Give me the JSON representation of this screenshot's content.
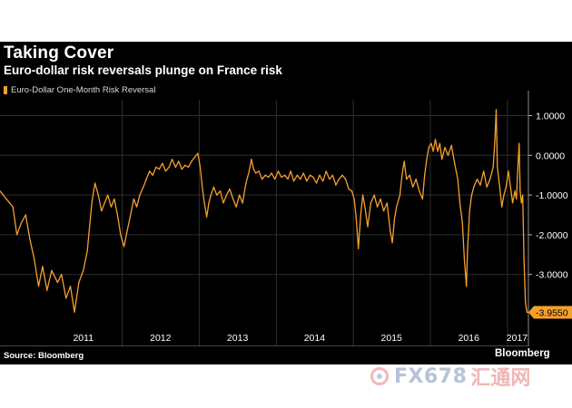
{
  "title": "Taking Cover",
  "subtitle": "Euro-dollar risk reversals plunge on France risk",
  "source": "Source: Bloomberg",
  "logo": "Bloomberg",
  "watermark": {
    "brand": "FX678",
    "cn": "汇通网"
  },
  "colors": {
    "line": "#f6a02c",
    "background": "#000000",
    "grid": "#2e2e2e",
    "axis_text": "#ffffff",
    "last_box": "#f6a02c"
  },
  "chart_data": {
    "type": "line",
    "legend": [
      "Euro-Dollar One-Month Risk Reversal"
    ],
    "legend_position": "top-left",
    "grid": true,
    "ylim": [
      -4.4,
      1.4
    ],
    "y_ticks": [
      1.0,
      0.0,
      -1.0,
      -2.0,
      -3.0
    ],
    "y_tick_labels": [
      "1.0000",
      "0.0000",
      "-1.0000",
      "-2.0000",
      "-3.0000"
    ],
    "x_range": [
      "2010-06-01",
      "2017-04-10"
    ],
    "x_tick_labels": [
      "2011",
      "2012",
      "2013",
      "2014",
      "2015",
      "2016",
      "2017"
    ],
    "x_label_dates": [
      "2011-07-01",
      "2012-07-01",
      "2013-07-01",
      "2014-07-01",
      "2015-07-01",
      "2016-07-01",
      "2017-02-15"
    ],
    "x_separator_dates": [
      "2012-01-01",
      "2013-01-01",
      "2014-01-01",
      "2015-01-01",
      "2016-01-01",
      "2017-01-01"
    ],
    "last_value_label": "-3.9550",
    "series": [
      {
        "name": "Euro-Dollar One-Month Risk Reversal",
        "points": [
          [
            "2010-06-01",
            -0.9
          ],
          [
            "2010-07-01",
            -1.1
          ],
          [
            "2010-08-01",
            -1.3
          ],
          [
            "2010-08-20",
            -2.0
          ],
          [
            "2010-09-10",
            -1.7
          ],
          [
            "2010-10-01",
            -1.5
          ],
          [
            "2010-10-20",
            -2.1
          ],
          [
            "2010-11-10",
            -2.6
          ],
          [
            "2010-12-01",
            -3.3
          ],
          [
            "2010-12-20",
            -2.8
          ],
          [
            "2011-01-10",
            -3.4
          ],
          [
            "2011-02-01",
            -2.9
          ],
          [
            "2011-03-01",
            -3.2
          ],
          [
            "2011-03-20",
            -3.0
          ],
          [
            "2011-04-10",
            -3.6
          ],
          [
            "2011-05-01",
            -3.3
          ],
          [
            "2011-05-20",
            -3.95
          ],
          [
            "2011-06-10",
            -3.2
          ],
          [
            "2011-07-01",
            -2.9
          ],
          [
            "2011-07-20",
            -2.4
          ],
          [
            "2011-08-10",
            -1.2
          ],
          [
            "2011-08-25",
            -0.7
          ],
          [
            "2011-09-10",
            -1.0
          ],
          [
            "2011-09-25",
            -1.4
          ],
          [
            "2011-10-10",
            -1.2
          ],
          [
            "2011-10-25",
            -1.0
          ],
          [
            "2011-11-10",
            -1.3
          ],
          [
            "2011-11-25",
            -1.1
          ],
          [
            "2011-12-10",
            -1.5
          ],
          [
            "2011-12-25",
            -2.0
          ],
          [
            "2012-01-10",
            -2.3
          ],
          [
            "2012-01-25",
            -1.9
          ],
          [
            "2012-02-10",
            -1.5
          ],
          [
            "2012-02-25",
            -1.1
          ],
          [
            "2012-03-10",
            -1.3
          ],
          [
            "2012-03-25",
            -1.0
          ],
          [
            "2012-04-10",
            -0.8
          ],
          [
            "2012-04-25",
            -0.6
          ],
          [
            "2012-05-10",
            -0.4
          ],
          [
            "2012-05-25",
            -0.5
          ],
          [
            "2012-06-10",
            -0.3
          ],
          [
            "2012-06-25",
            -0.35
          ],
          [
            "2012-07-10",
            -0.2
          ],
          [
            "2012-07-25",
            -0.4
          ],
          [
            "2012-08-10",
            -0.3
          ],
          [
            "2012-08-25",
            -0.1
          ],
          [
            "2012-09-10",
            -0.3
          ],
          [
            "2012-09-25",
            -0.15
          ],
          [
            "2012-10-10",
            -0.35
          ],
          [
            "2012-10-25",
            -0.25
          ],
          [
            "2012-11-10",
            -0.3
          ],
          [
            "2012-11-25",
            -0.15
          ],
          [
            "2012-12-10",
            -0.05
          ],
          [
            "2012-12-25",
            0.05
          ],
          [
            "2013-01-05",
            -0.3
          ],
          [
            "2013-01-15",
            -0.8
          ],
          [
            "2013-01-25",
            -1.2
          ],
          [
            "2013-02-05",
            -1.55
          ],
          [
            "2013-02-15",
            -1.2
          ],
          [
            "2013-02-25",
            -1.0
          ],
          [
            "2013-03-10",
            -0.8
          ],
          [
            "2013-03-25",
            -1.0
          ],
          [
            "2013-04-10",
            -0.9
          ],
          [
            "2013-04-25",
            -1.2
          ],
          [
            "2013-05-10",
            -1.0
          ],
          [
            "2013-05-25",
            -0.85
          ],
          [
            "2013-06-10",
            -1.1
          ],
          [
            "2013-06-25",
            -1.3
          ],
          [
            "2013-07-10",
            -1.0
          ],
          [
            "2013-07-25",
            -1.2
          ],
          [
            "2013-08-10",
            -0.7
          ],
          [
            "2013-08-25",
            -0.4
          ],
          [
            "2013-09-05",
            -0.1
          ],
          [
            "2013-09-15",
            -0.35
          ],
          [
            "2013-09-25",
            -0.45
          ],
          [
            "2013-10-10",
            -0.4
          ],
          [
            "2013-10-25",
            -0.6
          ],
          [
            "2013-11-10",
            -0.5
          ],
          [
            "2013-11-25",
            -0.55
          ],
          [
            "2013-12-10",
            -0.45
          ],
          [
            "2013-12-25",
            -0.6
          ],
          [
            "2014-01-10",
            -0.4
          ],
          [
            "2014-01-25",
            -0.55
          ],
          [
            "2014-02-10",
            -0.5
          ],
          [
            "2014-02-25",
            -0.6
          ],
          [
            "2014-03-10",
            -0.4
          ],
          [
            "2014-03-25",
            -0.65
          ],
          [
            "2014-04-10",
            -0.5
          ],
          [
            "2014-04-25",
            -0.6
          ],
          [
            "2014-05-10",
            -0.45
          ],
          [
            "2014-05-25",
            -0.65
          ],
          [
            "2014-06-10",
            -0.5
          ],
          [
            "2014-06-25",
            -0.55
          ],
          [
            "2014-07-10",
            -0.7
          ],
          [
            "2014-07-25",
            -0.5
          ],
          [
            "2014-08-10",
            -0.65
          ],
          [
            "2014-08-25",
            -0.4
          ],
          [
            "2014-09-10",
            -0.6
          ],
          [
            "2014-09-25",
            -0.5
          ],
          [
            "2014-10-10",
            -0.75
          ],
          [
            "2014-10-25",
            -0.6
          ],
          [
            "2014-11-10",
            -0.5
          ],
          [
            "2014-11-25",
            -0.6
          ],
          [
            "2014-12-10",
            -0.85
          ],
          [
            "2014-12-25",
            -0.9
          ],
          [
            "2015-01-05",
            -1.1
          ],
          [
            "2015-01-15",
            -1.6
          ],
          [
            "2015-01-25",
            -2.35
          ],
          [
            "2015-02-05",
            -1.5
          ],
          [
            "2015-02-15",
            -1.0
          ],
          [
            "2015-02-25",
            -1.3
          ],
          [
            "2015-03-10",
            -1.8
          ],
          [
            "2015-03-25",
            -1.2
          ],
          [
            "2015-04-10",
            -1.0
          ],
          [
            "2015-04-25",
            -1.3
          ],
          [
            "2015-05-10",
            -1.1
          ],
          [
            "2015-05-25",
            -1.4
          ],
          [
            "2015-06-10",
            -1.2
          ],
          [
            "2015-06-25",
            -1.9
          ],
          [
            "2015-07-05",
            -2.2
          ],
          [
            "2015-07-15",
            -1.6
          ],
          [
            "2015-07-25",
            -1.3
          ],
          [
            "2015-08-10",
            -1.0
          ],
          [
            "2015-08-20",
            -0.5
          ],
          [
            "2015-08-30",
            -0.15
          ],
          [
            "2015-09-10",
            -0.6
          ],
          [
            "2015-09-25",
            -0.5
          ],
          [
            "2015-10-10",
            -0.8
          ],
          [
            "2015-10-25",
            -0.6
          ],
          [
            "2015-11-10",
            -0.9
          ],
          [
            "2015-11-25",
            -1.1
          ],
          [
            "2015-12-05",
            -0.5
          ],
          [
            "2015-12-15",
            -0.1
          ],
          [
            "2015-12-25",
            0.2
          ],
          [
            "2016-01-05",
            0.3
          ],
          [
            "2016-01-15",
            0.1
          ],
          [
            "2016-01-25",
            0.4
          ],
          [
            "2016-02-05",
            0.1
          ],
          [
            "2016-02-15",
            0.3
          ],
          [
            "2016-02-25",
            -0.1
          ],
          [
            "2016-03-10",
            0.2
          ],
          [
            "2016-03-25",
            0.0
          ],
          [
            "2016-04-10",
            0.25
          ],
          [
            "2016-04-25",
            -0.2
          ],
          [
            "2016-05-10",
            -0.6
          ],
          [
            "2016-05-20",
            -1.2
          ],
          [
            "2016-06-01",
            -1.7
          ],
          [
            "2016-06-10",
            -2.6
          ],
          [
            "2016-06-20",
            -3.3
          ],
          [
            "2016-06-25",
            -2.4
          ],
          [
            "2016-07-05",
            -1.4
          ],
          [
            "2016-07-15",
            -1.0
          ],
          [
            "2016-07-25",
            -0.8
          ],
          [
            "2016-08-10",
            -0.6
          ],
          [
            "2016-08-25",
            -0.75
          ],
          [
            "2016-09-10",
            -0.4
          ],
          [
            "2016-09-25",
            -0.8
          ],
          [
            "2016-10-10",
            -0.6
          ],
          [
            "2016-10-25",
            -0.3
          ],
          [
            "2016-11-02",
            0.4
          ],
          [
            "2016-11-08",
            1.15
          ],
          [
            "2016-11-14",
            -0.3
          ],
          [
            "2016-11-25",
            -0.8
          ],
          [
            "2016-12-05",
            -1.3
          ],
          [
            "2016-12-15",
            -1.0
          ],
          [
            "2016-12-25",
            -0.8
          ],
          [
            "2017-01-05",
            -0.4
          ],
          [
            "2017-01-15",
            -0.8
          ],
          [
            "2017-01-25",
            -1.2
          ],
          [
            "2017-02-05",
            -0.9
          ],
          [
            "2017-02-12",
            -1.1
          ],
          [
            "2017-02-20",
            -0.2
          ],
          [
            "2017-02-25",
            0.3
          ],
          [
            "2017-03-02",
            -0.9
          ],
          [
            "2017-03-08",
            -1.2
          ],
          [
            "2017-03-14",
            -1.0
          ],
          [
            "2017-03-20",
            -2.6
          ],
          [
            "2017-03-27",
            -3.7
          ],
          [
            "2017-04-03",
            -3.955
          ]
        ]
      }
    ]
  }
}
